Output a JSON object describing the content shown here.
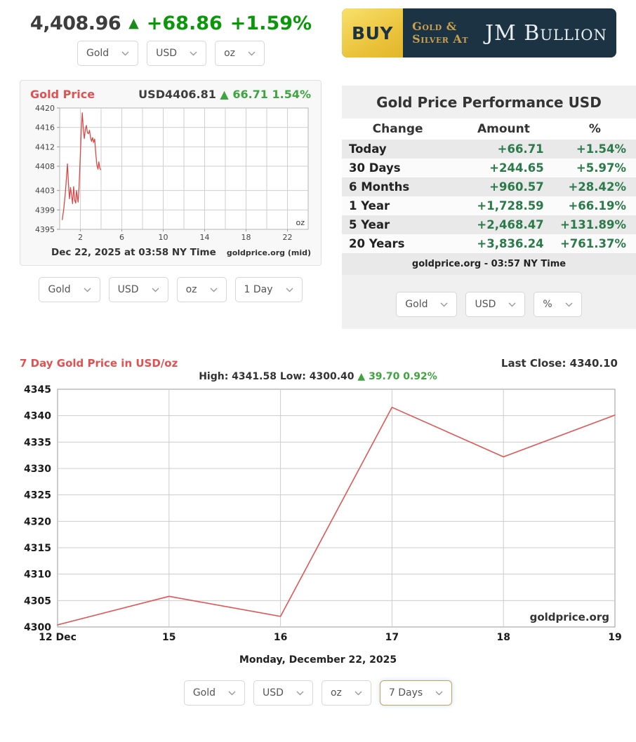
{
  "ticker": {
    "price": "4,408.96",
    "arrow": "▲",
    "change": "+68.86",
    "change_pct": "+1.59%",
    "selects": [
      "Gold",
      "USD",
      "oz"
    ]
  },
  "banner": {
    "buy": "BUY",
    "tagline_line1": "Gold &",
    "tagline_line2": "Silver At",
    "brand": "JM Bullion"
  },
  "intraday": {
    "title": "Gold Price",
    "price_label": "USD4406.81",
    "arrow": "▲",
    "change_note": "66.71 1.54%",
    "footer_left": "Dec 22, 2025 at 03:58 NY Time",
    "footer_right": "goldprice.org (mid)",
    "selects": [
      "Gold",
      "USD",
      "oz",
      "1 Day"
    ]
  },
  "performance": {
    "title": "Gold Price Performance USD",
    "columns": [
      "Change",
      "Amount",
      "%"
    ],
    "rows": [
      {
        "label": "Today",
        "amount": "+66.71",
        "pct": "+1.54%"
      },
      {
        "label": "30 Days",
        "amount": "+244.65",
        "pct": "+5.97%"
      },
      {
        "label": "6 Months",
        "amount": "+960.57",
        "pct": "+28.42%"
      },
      {
        "label": "1 Year",
        "amount": "+1,728.59",
        "pct": "+66.19%"
      },
      {
        "label": "5 Year",
        "amount": "+2,468.47",
        "pct": "+131.89%"
      },
      {
        "label": "20 Years",
        "amount": "+3,836.24",
        "pct": "+761.37%"
      }
    ],
    "footer": "goldprice.org - 03:57 NY Time",
    "selects": [
      "Gold",
      "USD",
      "%"
    ]
  },
  "week": {
    "title": "7 Day Gold Price in USD/oz",
    "last_close": "Last Close: 4340.10",
    "high_low": "High: 4341.58 Low: 4300.40",
    "arrow": "▲",
    "change_note": "39.70 0.92%",
    "date_label": "Monday, December 22, 2025",
    "selects": [
      "Gold",
      "USD",
      "oz",
      "7 Days"
    ]
  },
  "chart_data": [
    {
      "type": "line",
      "title": "Gold Price 1 Day (USD/oz)",
      "unit_label": "oz",
      "x": [
        0.25,
        0.4,
        0.55,
        0.75,
        0.85,
        0.95,
        1.05,
        1.15,
        1.25,
        1.35,
        1.45,
        1.55,
        1.62,
        1.7,
        1.78,
        1.88,
        2.0,
        2.08,
        2.18,
        2.28,
        2.38,
        2.48,
        2.58,
        2.68,
        2.78,
        2.88,
        2.98,
        3.08,
        3.18,
        3.28,
        3.38,
        3.5,
        3.6,
        3.7,
        3.78,
        3.88,
        3.95
      ],
      "y": [
        4397.0,
        4399.3,
        4402.5,
        4408.5,
        4404.5,
        4401.3,
        4403.6,
        4402.0,
        4400.3,
        4403.8,
        4401.0,
        4400.4,
        4403.0,
        4401.8,
        4400.6,
        4404.0,
        4410.5,
        4415.0,
        4419.0,
        4415.8,
        4413.7,
        4415.6,
        4416.4,
        4414.9,
        4414.7,
        4415.4,
        4413.9,
        4413.1,
        4413.9,
        4412.9,
        4413.6,
        4410.3,
        4408.2,
        4407.4,
        4408.9,
        4407.6,
        4407.3
      ],
      "xlim": [
        0,
        24
      ],
      "ylim": [
        4395,
        4420
      ],
      "xgrid_step": 2,
      "xticks": [
        2,
        6,
        10,
        14,
        18,
        22
      ],
      "yticks": [
        4395,
        4399,
        4403,
        4408,
        4412,
        4416,
        4420
      ],
      "line_color": "#d94848"
    },
    {
      "type": "line",
      "title": "7 Day Gold Price in USD/oz",
      "categories": [
        "12 Dec",
        "15",
        "16",
        "17",
        "18",
        "19"
      ],
      "values": [
        4300.4,
        4305.8,
        4302.0,
        4341.58,
        4332.2,
        4340.1
      ],
      "ylim": [
        4300,
        4345
      ],
      "ytick_step": 5,
      "line_color": "#e05656",
      "watermark": "goldprice.org"
    }
  ],
  "colors": {
    "accent_green": "#0a970a",
    "table_green": "#2b7a4a",
    "chart_green": "#3fa33f",
    "accent_red": "#e05252",
    "banner_navy": "#1c3343",
    "banner_gold": "#c9a14e"
  }
}
